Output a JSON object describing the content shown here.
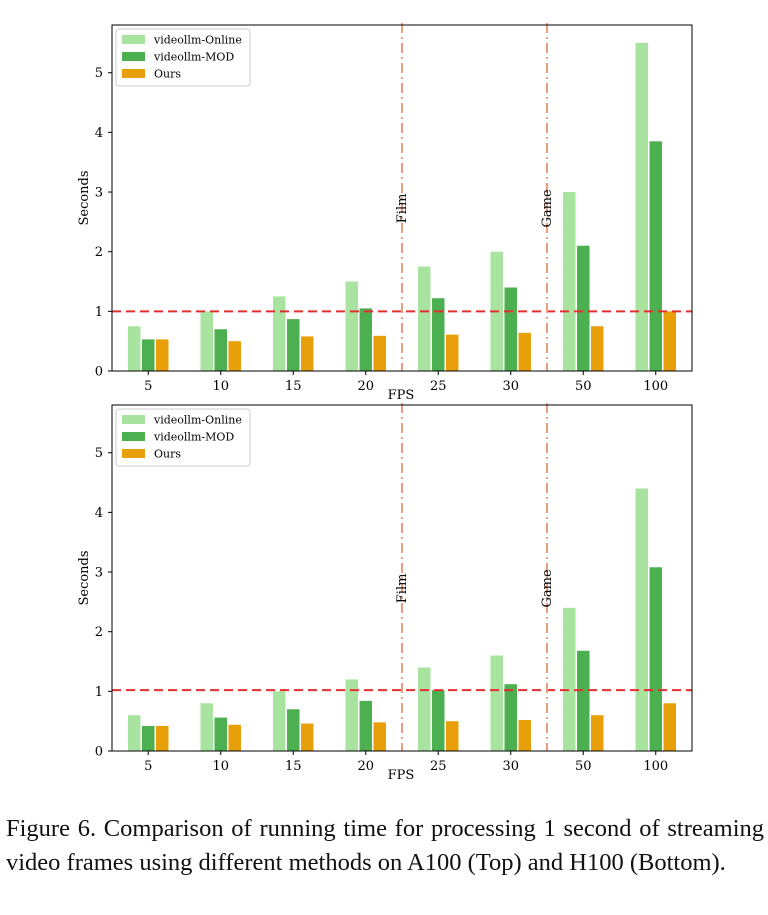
{
  "chart_data": [
    {
      "type": "bar",
      "panel": "top",
      "categories": [
        "5",
        "10",
        "15",
        "20",
        "25",
        "30",
        "50",
        "100"
      ],
      "series": [
        {
          "name": "videollm-Online",
          "color": "#a8e4a0",
          "values": [
            0.75,
            1.0,
            1.25,
            1.5,
            1.75,
            2.0,
            3.0,
            5.5
          ]
        },
        {
          "name": "videollm-MOD",
          "color": "#4caf50",
          "values": [
            0.53,
            0.7,
            0.87,
            1.05,
            1.22,
            1.4,
            2.1,
            3.85
          ]
        },
        {
          "name": "Ours",
          "color": "#e8a00a",
          "values": [
            0.53,
            0.5,
            0.58,
            0.59,
            0.61,
            0.64,
            0.75,
            1.0
          ]
        }
      ],
      "xlabel": "FPS",
      "ylabel": "Seconds",
      "ylim": [
        0,
        5.8
      ],
      "yticks": [
        "0",
        "1",
        "2",
        "3",
        "4",
        "5"
      ],
      "reference_line": {
        "value": 1.0,
        "color": "#e03030",
        "style": "dashed"
      },
      "annotations": [
        {
          "label": "Film",
          "between": [
            "20",
            "25"
          ],
          "color": "#e8a080"
        },
        {
          "label": "Game",
          "between": [
            "30",
            "50"
          ],
          "color": "#e8a080"
        }
      ],
      "legend": "top-left"
    },
    {
      "type": "bar",
      "panel": "bottom",
      "categories": [
        "5",
        "10",
        "15",
        "20",
        "25",
        "30",
        "50",
        "100"
      ],
      "series": [
        {
          "name": "videollm-Online",
          "color": "#a8e4a0",
          "values": [
            0.6,
            0.8,
            1.0,
            1.2,
            1.4,
            1.6,
            2.4,
            4.4
          ]
        },
        {
          "name": "videollm-MOD",
          "color": "#4caf50",
          "values": [
            0.42,
            0.56,
            0.7,
            0.84,
            1.02,
            1.12,
            1.68,
            3.08
          ]
        },
        {
          "name": "Ours",
          "color": "#e8a00a",
          "values": [
            0.42,
            0.44,
            0.46,
            0.48,
            0.5,
            0.52,
            0.6,
            0.8
          ]
        }
      ],
      "xlabel": "FPS",
      "ylabel": "Seconds",
      "ylim": [
        0,
        5.8
      ],
      "yticks": [
        "0",
        "1",
        "2",
        "3",
        "4",
        "5"
      ],
      "reference_line": {
        "value": 1.02,
        "color": "#e03030",
        "style": "dashed"
      },
      "annotations": [
        {
          "label": "Film",
          "between": [
            "20",
            "25"
          ],
          "color": "#e8a080"
        },
        {
          "label": "Game",
          "between": [
            "30",
            "50"
          ],
          "color": "#e8a080"
        }
      ],
      "legend": "top-left"
    }
  ],
  "caption": "Figure 6.  Comparison of running time for processing 1 second of streaming video frames using different methods on A100 (Top) and H100 (Bottom)."
}
